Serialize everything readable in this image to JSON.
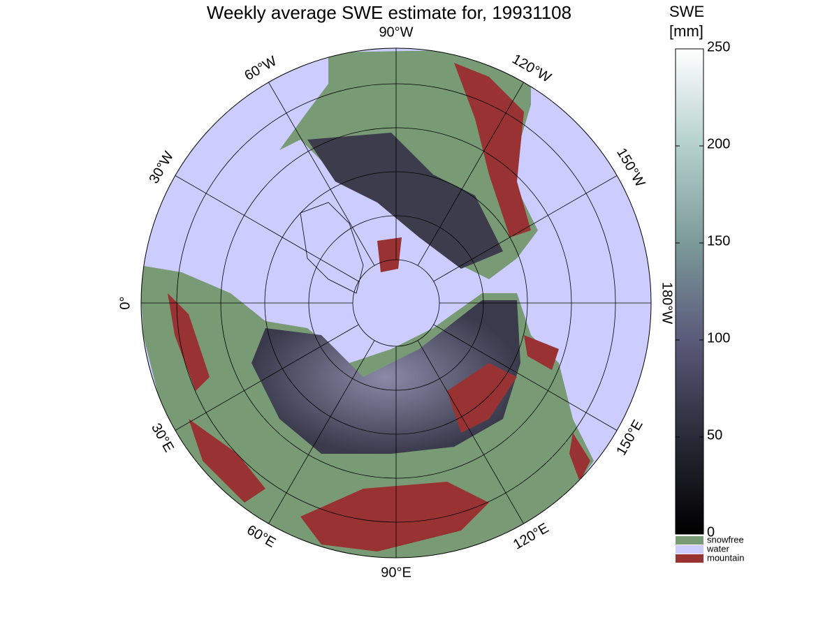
{
  "title": "Weekly average SWE estimate for, 19931108",
  "map": {
    "lon_labels": [
      "0°",
      "30°E",
      "60°E",
      "90°E",
      "120°E",
      "150°E",
      "180°W",
      "150°W",
      "120°W",
      "90°W",
      "60°W",
      "30°W"
    ]
  },
  "colorbar": {
    "label": [
      "SWE",
      "[mm]"
    ],
    "range": [
      0,
      250
    ],
    "ticks": [
      0,
      50,
      100,
      150,
      200,
      250
    ]
  },
  "legend": [
    {
      "name": "snowfree",
      "color": "#789a74"
    },
    {
      "name": "water",
      "color": "#ccccff"
    },
    {
      "name": "mountain",
      "color": "#993333"
    }
  ]
}
